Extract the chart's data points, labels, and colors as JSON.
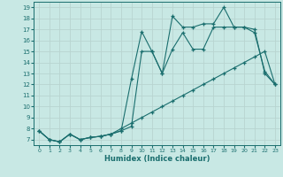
{
  "xlabel": "Humidex (Indice chaleur)",
  "bg_color": "#c8e8e4",
  "grid_color": "#b8d4d0",
  "line_color": "#1a6e6e",
  "xlim": [
    -0.5,
    23.5
  ],
  "ylim": [
    6.5,
    19.5
  ],
  "xticks": [
    0,
    1,
    2,
    3,
    4,
    5,
    6,
    7,
    8,
    9,
    10,
    11,
    12,
    13,
    14,
    15,
    16,
    17,
    18,
    19,
    20,
    21,
    22,
    23
  ],
  "yticks": [
    7,
    8,
    9,
    10,
    11,
    12,
    13,
    14,
    15,
    16,
    17,
    18,
    19
  ],
  "line1_x": [
    0,
    1,
    2,
    3,
    4,
    5,
    6,
    7,
    8,
    9,
    10,
    11,
    12,
    13,
    14,
    15,
    16,
    17,
    18,
    19,
    20,
    21,
    22,
    23
  ],
  "line1_y": [
    7.8,
    7.0,
    6.8,
    7.5,
    7.0,
    7.2,
    7.3,
    7.5,
    8.0,
    8.5,
    9.0,
    9.5,
    10.0,
    10.5,
    11.0,
    11.5,
    12.0,
    12.5,
    13.0,
    13.5,
    14.0,
    14.5,
    15.0,
    12.0
  ],
  "line2_x": [
    0,
    1,
    2,
    3,
    4,
    5,
    6,
    7,
    8,
    9,
    10,
    11,
    12,
    13,
    14,
    15,
    16,
    17,
    18,
    19,
    20,
    21,
    22,
    23
  ],
  "line2_y": [
    7.8,
    7.0,
    6.8,
    7.5,
    7.0,
    7.2,
    7.3,
    7.5,
    7.8,
    8.2,
    15.0,
    15.0,
    13.0,
    15.2,
    16.7,
    15.2,
    15.2,
    17.2,
    17.2,
    17.2,
    17.2,
    16.7,
    13.2,
    12.0
  ],
  "line3_x": [
    0,
    1,
    2,
    3,
    4,
    5,
    6,
    7,
    8,
    9,
    10,
    11,
    12,
    13,
    14,
    15,
    16,
    17,
    18,
    19,
    20,
    21,
    22,
    23
  ],
  "line3_y": [
    7.8,
    7.0,
    6.8,
    7.5,
    7.0,
    7.2,
    7.3,
    7.5,
    7.8,
    12.5,
    16.8,
    15.0,
    13.0,
    18.2,
    17.2,
    17.2,
    17.5,
    17.5,
    19.0,
    17.2,
    17.2,
    17.0,
    13.0,
    12.0
  ]
}
